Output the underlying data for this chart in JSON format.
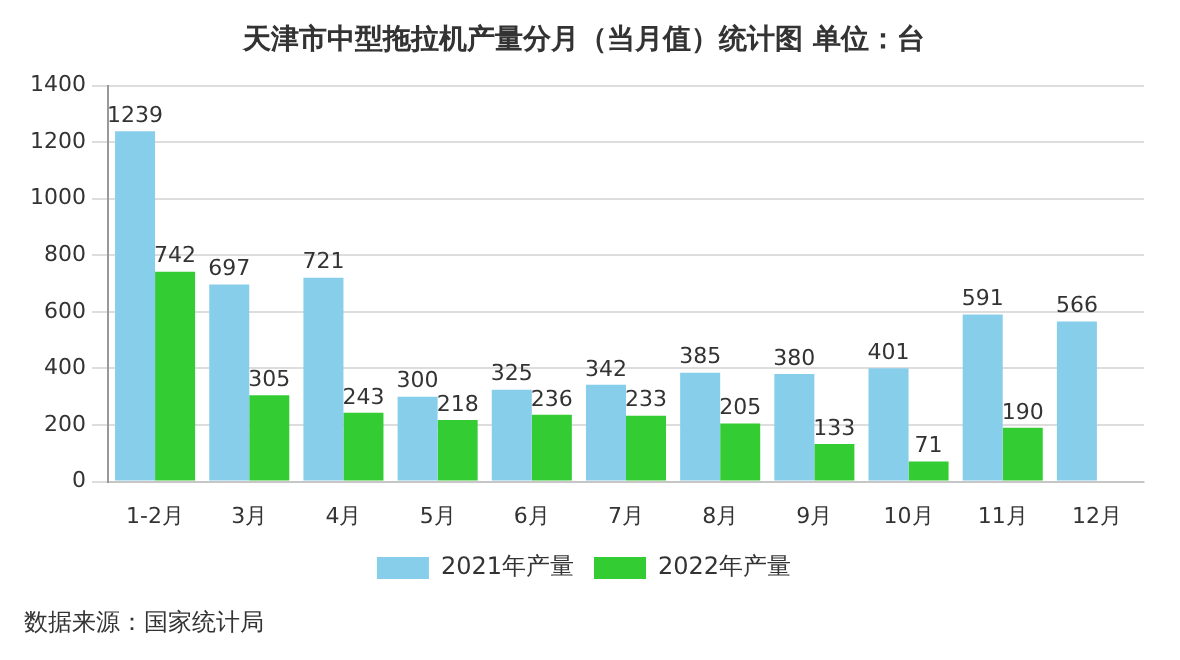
{
  "chart_data": {
    "type": "bar",
    "title": "天津市中型拖拉机产量分月（当月值）统计图 单位：台",
    "categories": [
      "1-2月",
      "3月",
      "4月",
      "5月",
      "6月",
      "7月",
      "8月",
      "9月",
      "10月",
      "11月",
      "12月"
    ],
    "series": [
      {
        "name": "2021年产量",
        "color": "#87ceeb",
        "values": [
          1239,
          697,
          721,
          300,
          325,
          342,
          385,
          380,
          401,
          591,
          566
        ]
      },
      {
        "name": "2022年产量",
        "color": "#33cc33",
        "values": [
          742,
          305,
          243,
          218,
          236,
          233,
          205,
          133,
          71,
          190,
          null
        ]
      }
    ],
    "ylim": [
      0,
      1400
    ],
    "yticks": [
      0,
      200,
      400,
      600,
      800,
      1000,
      1200,
      1400
    ],
    "grid": "y",
    "legend": "bottom",
    "data_labels": true,
    "annotations": [
      "数据来源：国家统计局"
    ]
  }
}
